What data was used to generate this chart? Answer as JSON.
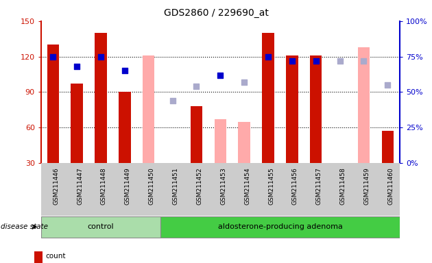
{
  "title": "GDS2860 / 229690_at",
  "samples": [
    "GSM211446",
    "GSM211447",
    "GSM211448",
    "GSM211449",
    "GSM211450",
    "GSM211451",
    "GSM211452",
    "GSM211453",
    "GSM211454",
    "GSM211455",
    "GSM211456",
    "GSM211457",
    "GSM211458",
    "GSM211459",
    "GSM211460"
  ],
  "count_values": [
    130,
    97,
    140,
    90,
    null,
    null,
    78,
    null,
    null,
    140,
    121,
    121,
    null,
    null,
    57
  ],
  "count_absent": [
    null,
    null,
    null,
    null,
    121,
    28,
    null,
    67,
    65,
    null,
    null,
    null,
    null,
    128,
    null
  ],
  "percentile_present": [
    75,
    68,
    75,
    65,
    null,
    null,
    null,
    62,
    null,
    75,
    72,
    72,
    null,
    null,
    null
  ],
  "percentile_absent": [
    null,
    null,
    null,
    null,
    null,
    44,
    54,
    null,
    57,
    null,
    null,
    null,
    72,
    72,
    55
  ],
  "group_control": [
    "GSM211446",
    "GSM211447",
    "GSM211448",
    "GSM211449",
    "GSM211450"
  ],
  "group_adenoma": [
    "GSM211451",
    "GSM211452",
    "GSM211453",
    "GSM211454",
    "GSM211455",
    "GSM211456",
    "GSM211457",
    "GSM211458",
    "GSM211459",
    "GSM211460"
  ],
  "ylim_left": [
    30,
    150
  ],
  "ylim_right": [
    0,
    100
  ],
  "yticks_left": [
    30,
    60,
    90,
    120,
    150
  ],
  "yticks_right": [
    0,
    25,
    50,
    75,
    100
  ],
  "bar_color_present": "#cc1100",
  "bar_color_absent": "#ffaaaa",
  "dot_color_present": "#0000cc",
  "dot_color_absent": "#aaaacc",
  "group_color_control": "#aaddaa",
  "group_color_adenoma": "#44cc44",
  "bar_width": 0.5,
  "dot_size": 40,
  "left_axis_color": "#cc1100",
  "right_axis_color": "#0000cc",
  "grid_lines": [
    60,
    90,
    120
  ],
  "label_fontsize": 6.5,
  "group_fontsize": 8,
  "legend_fontsize": 7.5
}
